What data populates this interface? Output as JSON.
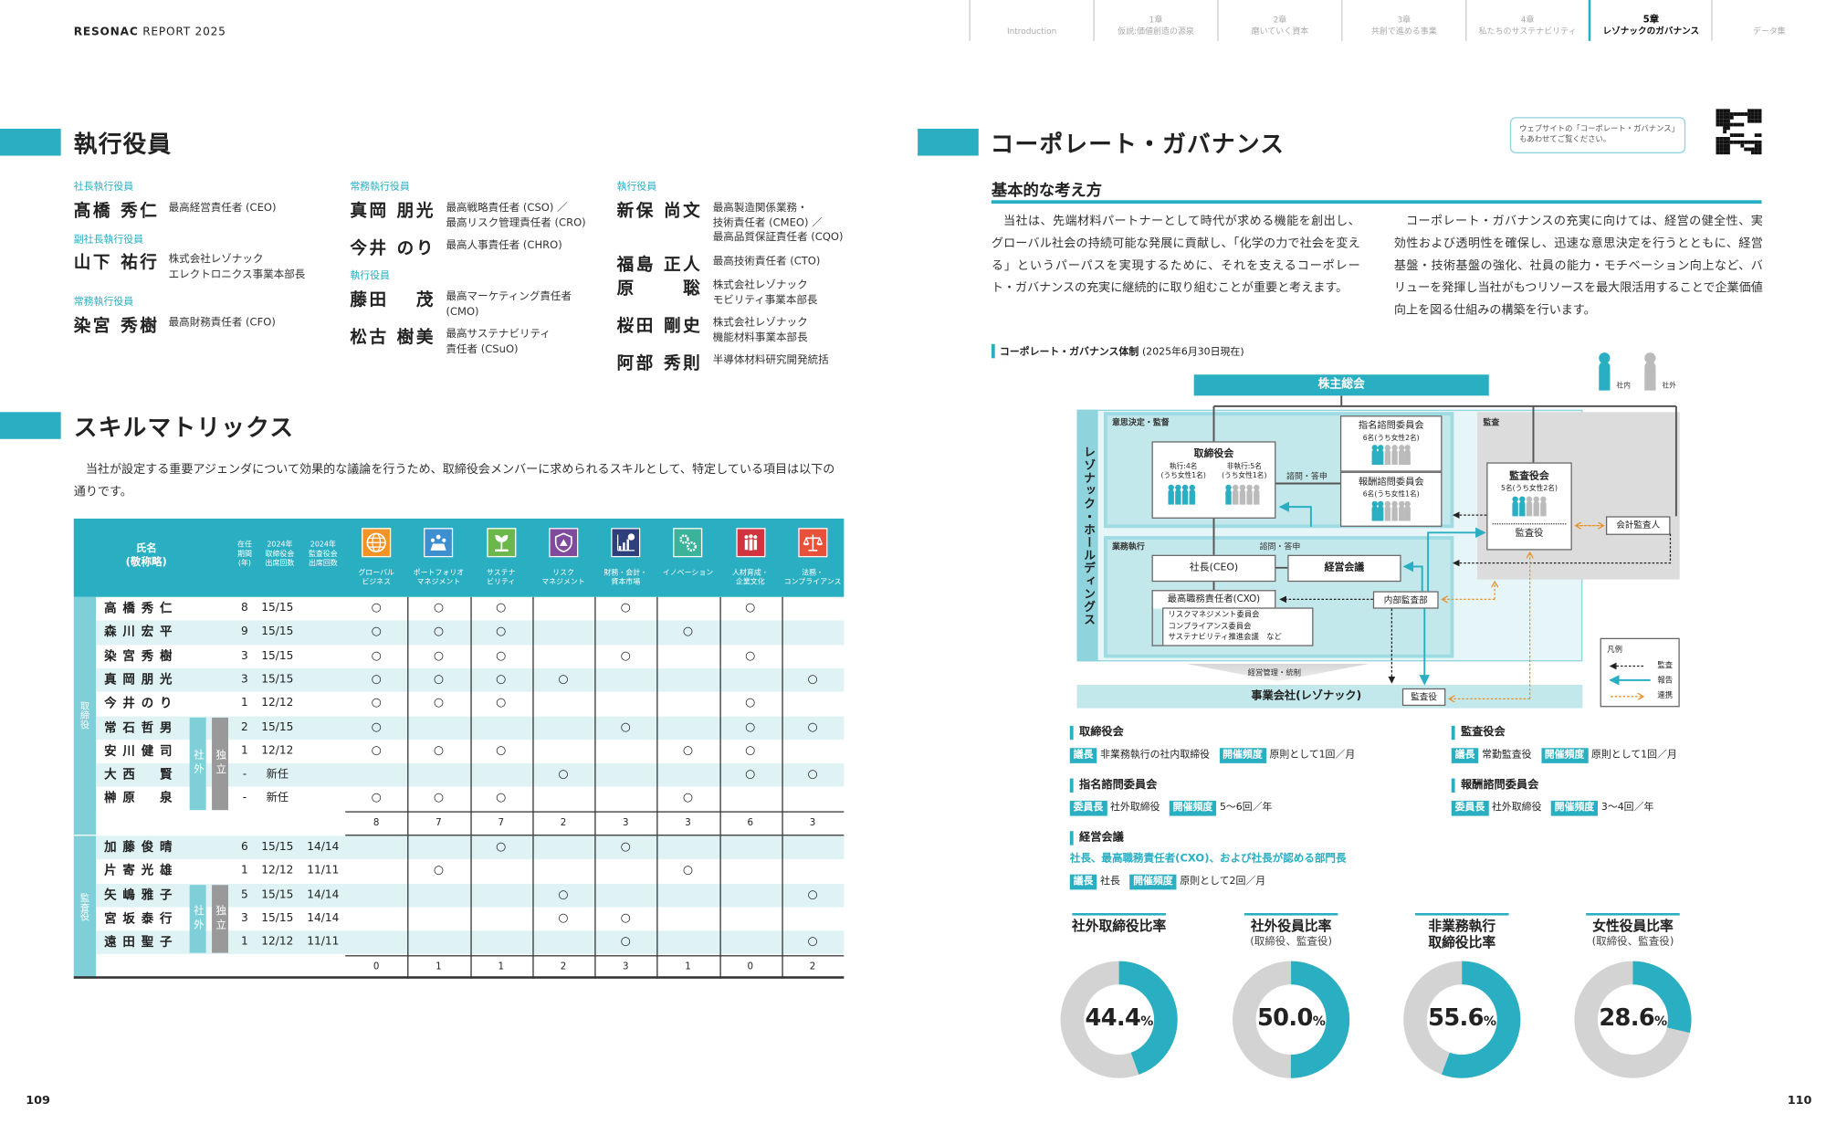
{
  "header": {
    "brand": "RESONAC",
    "report": "REPORT 2025"
  },
  "nav": [
    {
      "num": "",
      "label": "Introduction"
    },
    {
      "num": "1章",
      "label": "仮説:価値創造の源泉"
    },
    {
      "num": "2章",
      "label": "磨いていく資本"
    },
    {
      "num": "3章",
      "label": "共創で進める事業"
    },
    {
      "num": "4章",
      "label": "私たちのサステナビリティ"
    },
    {
      "num": "5章",
      "label": "レゾナックのガバナンス",
      "active": true
    },
    {
      "num": "",
      "label": "データ集"
    }
  ],
  "executives": {
    "title": "執行役員",
    "groups": [
      {
        "role": "社長執行役員",
        "members": [
          {
            "name": "髙橋 秀仁",
            "position": [
              "最高経営責任者 (CEO)"
            ]
          }
        ]
      },
      {
        "role": "副社長執行役員",
        "members": [
          {
            "name": "山下 祐行",
            "position": [
              "株式会社レゾナック",
              "エレクトロニクス事業本部長"
            ]
          }
        ]
      },
      {
        "role": "常務執行役員",
        "members": [
          {
            "name": "染宮 秀樹",
            "position": [
              "最高財務責任者 (CFO)"
            ]
          }
        ]
      },
      {
        "role": "常務執行役員",
        "members": [
          {
            "name": "真岡 朋光",
            "position": [
              "最高戦略責任者 (CSO) ／",
              "最高リスク管理責任者 (CRO)"
            ]
          },
          {
            "name": "今井 のり",
            "position": [
              "最高人事責任者 (CHRO)"
            ]
          }
        ]
      },
      {
        "role": "執行役員",
        "members": [
          {
            "name": "藤田　 茂",
            "position": [
              "最高マーケティング責任者",
              "(CMO)"
            ]
          },
          {
            "name": "松古 樹美",
            "position": [
              "最高サステナビリティ",
              "責任者 (CSuO)"
            ]
          }
        ]
      },
      {
        "role": "執行役員",
        "members": [
          {
            "name": "新保 尚文",
            "position": [
              "最高製造関係業務・",
              "技術責任者 (CMEO) ／",
              "最高品質保証責任者 (CQO)"
            ]
          },
          {
            "name": "福島 正人",
            "position": [
              "最高技術責任者 (CTO)"
            ]
          },
          {
            "name": "原　　 聡",
            "position": [
              "株式会社レゾナック",
              "モビリティ事業本部長"
            ]
          },
          {
            "name": "桜田 剛史",
            "position": [
              "株式会社レゾナック",
              "機能材料事業本部長"
            ]
          },
          {
            "name": "阿部 秀則",
            "position": [
              "半導体材料研究開発統括"
            ]
          }
        ]
      }
    ]
  },
  "skills": {
    "title": "スキルマトリックス",
    "intro": "当社が設定する重要アジェンダについて効果的な議論を行うため、取締役会メンバーに求められるスキルとして、特定している項目は以下の通りです。",
    "headers": {
      "name": [
        "氏名",
        "(敬称略)"
      ],
      "tenure": [
        "在任",
        "期間",
        "(年)"
      ],
      "board": [
        "2024年",
        "取締役会",
        "出席回数"
      ],
      "audit": [
        "2024年",
        "監査役会",
        "出席回数"
      ]
    },
    "columns": [
      {
        "label": [
          "グローバル",
          "ビジネス"
        ],
        "icon": "globe-icon",
        "color": "#f39325"
      },
      {
        "label": [
          "ポートフォリオ",
          "マネジメント"
        ],
        "icon": "portfolio-icon",
        "color": "#3d8fcf"
      },
      {
        "label": [
          "サステナ",
          "ビリティ"
        ],
        "icon": "sprout-icon",
        "color": "#6ab84a"
      },
      {
        "label": [
          "リスク",
          "マネジメント"
        ],
        "icon": "shield-warning-icon",
        "color": "#7f4b9c"
      },
      {
        "label": [
          "財務・会計・",
          "資本市場"
        ],
        "icon": "bar-chart-icon",
        "color": "#2d3f7c"
      },
      {
        "label": [
          "イノベーション",
          ""
        ],
        "icon": "gears-icon",
        "color": "#3bb39a"
      },
      {
        "label": [
          "人材育成・",
          "企業文化"
        ],
        "icon": "people-icon",
        "color": "#d0343f"
      },
      {
        "label": [
          "法務・",
          "コンプライアンス"
        ],
        "icon": "scales-icon",
        "color": "#e8503a"
      }
    ],
    "mark": "○",
    "outside_label": "社外",
    "independent_label": "独立",
    "sections": [
      {
        "label": "取締役",
        "rows": [
          {
            "name": "高橋秀仁",
            "tenure": "8",
            "board": "15/15",
            "audit": "",
            "skills": [
              1,
              1,
              1,
              0,
              1,
              0,
              1,
              0
            ]
          },
          {
            "name": "森川宏平",
            "tenure": "9",
            "board": "15/15",
            "audit": "",
            "skills": [
              1,
              1,
              1,
              0,
              0,
              1,
              0,
              0
            ]
          },
          {
            "name": "染宮秀樹",
            "tenure": "3",
            "board": "15/15",
            "audit": "",
            "skills": [
              1,
              1,
              1,
              0,
              1,
              0,
              1,
              0
            ]
          },
          {
            "name": "真岡朋光",
            "tenure": "3",
            "board": "15/15",
            "audit": "",
            "skills": [
              1,
              1,
              1,
              1,
              0,
              0,
              0,
              1
            ]
          },
          {
            "name": "今井のり",
            "tenure": "1",
            "board": "12/12",
            "audit": "",
            "skills": [
              1,
              1,
              1,
              0,
              0,
              0,
              1,
              0
            ]
          },
          {
            "name": "常石哲男",
            "tenure": "2",
            "board": "15/15",
            "audit": "",
            "outside": true,
            "skills": [
              1,
              0,
              0,
              0,
              1,
              0,
              1,
              1
            ]
          },
          {
            "name": "安川健司",
            "tenure": "1",
            "board": "12/12",
            "audit": "",
            "outside": true,
            "skills": [
              1,
              1,
              1,
              0,
              0,
              1,
              1,
              0
            ]
          },
          {
            "name": "大西　賢",
            "tenure": "-",
            "board": "新任",
            "audit": "",
            "outside": true,
            "skills": [
              0,
              0,
              0,
              1,
              0,
              0,
              1,
              1
            ]
          },
          {
            "name": "榊原　泉",
            "tenure": "-",
            "board": "新任",
            "audit": "",
            "outside": true,
            "skills": [
              1,
              1,
              1,
              0,
              0,
              1,
              0,
              0
            ]
          }
        ],
        "totals": [
          "8",
          "7",
          "7",
          "2",
          "3",
          "3",
          "6",
          "3"
        ]
      },
      {
        "label": "監査役",
        "rows": [
          {
            "name": "加藤俊晴",
            "tenure": "6",
            "board": "15/15",
            "audit": "14/14",
            "skills": [
              0,
              0,
              1,
              0,
              1,
              0,
              0,
              0
            ]
          },
          {
            "name": "片寄光雄",
            "tenure": "1",
            "board": "12/12",
            "audit": "11/11",
            "skills": [
              0,
              1,
              0,
              0,
              0,
              1,
              0,
              0
            ]
          },
          {
            "name": "矢嶋雅子",
            "tenure": "5",
            "board": "15/15",
            "audit": "14/14",
            "outside": true,
            "skills": [
              0,
              0,
              0,
              1,
              0,
              0,
              0,
              1
            ]
          },
          {
            "name": "宮坂泰行",
            "tenure": "3",
            "board": "15/15",
            "audit": "14/14",
            "outside": true,
            "skills": [
              0,
              0,
              0,
              1,
              1,
              0,
              0,
              0
            ]
          },
          {
            "name": "遠田聖子",
            "tenure": "1",
            "board": "12/12",
            "audit": "11/11",
            "outside": true,
            "skills": [
              0,
              0,
              0,
              0,
              1,
              0,
              0,
              1
            ]
          }
        ],
        "totals": [
          "0",
          "1",
          "1",
          "2",
          "3",
          "1",
          "0",
          "2"
        ]
      }
    ]
  },
  "governance": {
    "title": "コーポレート・ガバナンス",
    "callout": [
      "ウェブサイトの「コーポレート・ガバナンス」",
      "もあわせてご覧ください。"
    ],
    "basic_title": "基本的な考え方",
    "paragraphs": [
      "当社は、先端材料パートナーとして時代が求める機能を創出し、グローバル社会の持続可能な発展に貢献し、「化学の力で社会を変える」というパーパスを実現するために、それを支えるコーポレート・ガバナンスの充実に継続的に取り組むことが重要と考えます。",
      "コーポレート・ガバナンスの充実に向けては、経営の健全性、実効性および透明性を確保し、迅速な意思決定を行うとともに、経営基盤・技術基盤の強化、社員の能力・モチベーション向上など、バリューを発揮し当社がもつリソースを最大限活用することで企業価値向上を図る仕組みの構築を行います。"
    ],
    "diagram": {
      "title": "コーポレート・ガバナンス体制",
      "date": "(2025年6月30日現在)",
      "legend_in": "社内",
      "legend_out": "社外",
      "shareholders": "株主総会",
      "holdings": "レゾナック・ホールディングス",
      "decision": "意思決定・監督",
      "board": "取締役会",
      "board_exec": [
        "執行:4名",
        "(うち女性1名)"
      ],
      "board_nonexec": [
        "非執行:5名",
        "(うち女性1名)"
      ],
      "consult": "諮問・答申",
      "nomination": "指名諮問委員会",
      "nomination_count": "6名(うち女性2名)",
      "remuneration": "報酬諮問委員会",
      "remuneration_count": "6名(うち女性1名)",
      "audit_area": "監査",
      "audit_board": "監査役会",
      "audit_board_count": "5名(うち女性2名)",
      "auditor": "監査役",
      "accounting_auditor": "会計監査人",
      "execution": "業務執行",
      "ceo": "社長(CEO)",
      "mgmt_meeting": "経営会議",
      "cxo": "最高職務責任者(CXO)",
      "committees": [
        "リスクマネジメント委員会",
        "コンプライアンス委員会",
        "サステナビリティ推進会議　など"
      ],
      "internal_audit": "内部監査部",
      "control": "経営管理・統制",
      "operating": "事業会社(レゾナック)",
      "op_auditor": "監査役",
      "legend_title": "凡例",
      "legend_audit": "監査",
      "legend_report": "報告",
      "legend_coop": "連携",
      "colors": {
        "internal": "#2aafc2",
        "external": "#bbbbbb",
        "coop": "#e8922a"
      }
    },
    "bodies": [
      {
        "name": "取締役会",
        "items": [
          {
            "tag": "議長",
            "text": "非業務執行の社内取締役"
          },
          {
            "tag": "開催頻度",
            "text": "原則として1回／月"
          }
        ]
      },
      {
        "name": "監査役会",
        "items": [
          {
            "tag": "議長",
            "text": "常勤監査役"
          },
          {
            "tag": "開催頻度",
            "text": "原則として1回／月"
          }
        ]
      },
      {
        "name": "指名諮問委員会",
        "items": [
          {
            "tag": "委員長",
            "text": "社外取締役"
          },
          {
            "tag": "開催頻度",
            "text": "5～6回／年"
          }
        ]
      },
      {
        "name": "報酬諮問委員会",
        "items": [
          {
            "tag": "委員長",
            "text": "社外取締役"
          },
          {
            "tag": "開催頻度",
            "text": "3～4回／年"
          }
        ]
      },
      {
        "name": "経営会議",
        "members": "社長、最高職務責任者(CXO)、および社長が認める部門長",
        "items": [
          {
            "tag": "議長",
            "text": "社長"
          },
          {
            "tag": "開催頻度",
            "text": "原則として2回／月"
          }
        ]
      }
    ]
  },
  "chart_data": [
    {
      "type": "pie",
      "title": "社外取締役比率",
      "subtitle": "",
      "values": [
        44.4,
        55.6
      ],
      "label": "44.4",
      "unit": "%"
    },
    {
      "type": "pie",
      "title": "社外役員比率",
      "subtitle": "(取締役、監査役)",
      "values": [
        50.0,
        50.0
      ],
      "label": "50.0",
      "unit": "%"
    },
    {
      "type": "pie",
      "title": "非業務執行\n取締役比率",
      "subtitle": "",
      "values": [
        55.6,
        44.4
      ],
      "label": "55.6",
      "unit": "%"
    },
    {
      "type": "pie",
      "title": "女性役員比率",
      "subtitle": "(取締役、監査役)",
      "values": [
        28.6,
        71.4
      ],
      "label": "28.6",
      "unit": "%"
    }
  ],
  "chart_colors": {
    "highlight": "#2aafc2",
    "rest": "#d3d3d3"
  },
  "pages": {
    "left": "109",
    "right": "110"
  }
}
